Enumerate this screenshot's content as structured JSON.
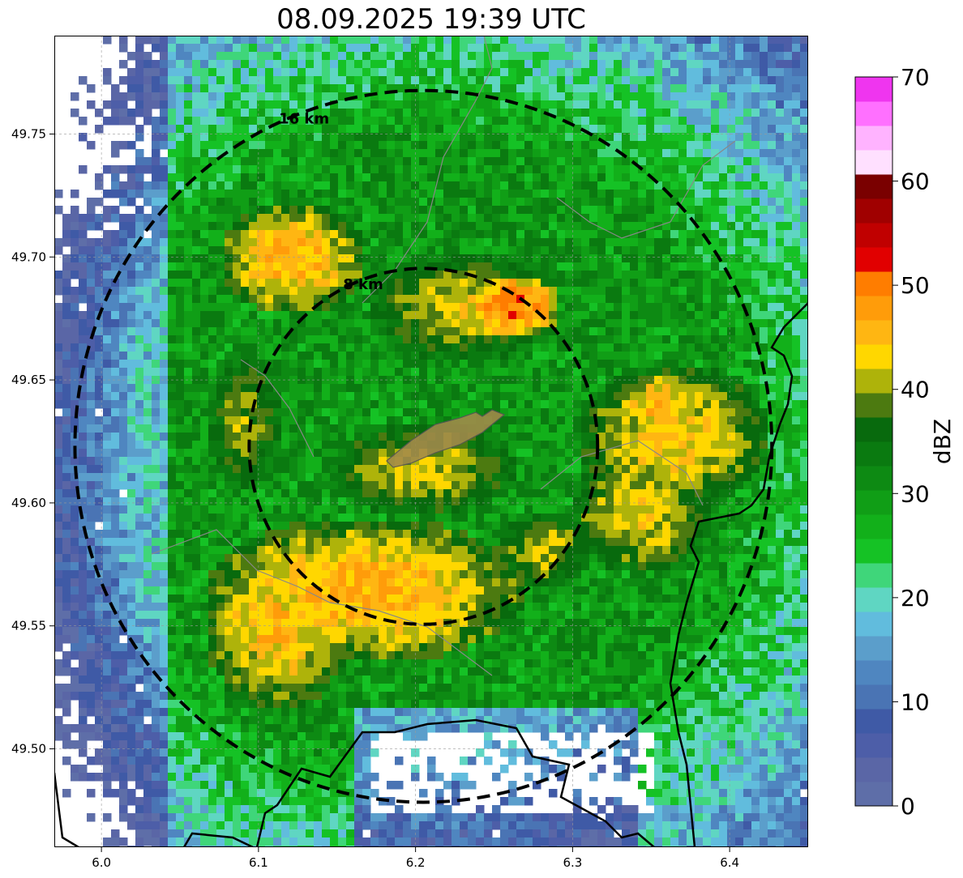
{
  "title": "08.09.2025 19:39 UTC",
  "map": {
    "x_ticks": [
      "6.0",
      "6.1",
      "6.2",
      "6.3",
      "6.4"
    ],
    "y_ticks": [
      "49.75",
      "49.70",
      "49.65",
      "49.60",
      "49.55",
      "49.50"
    ],
    "lon_range": [
      5.97,
      6.45
    ],
    "lat_range": [
      49.46,
      49.79
    ],
    "rings": [
      {
        "label": "8 km",
        "radius_km": 8
      },
      {
        "label": "16 km",
        "radius_km": 16
      }
    ],
    "radar_center": {
      "lon": 6.205,
      "lat": 49.623
    }
  },
  "colorbar": {
    "label": "dBZ",
    "min": 0,
    "max": 70,
    "tick_labels": [
      "0",
      "10",
      "20",
      "30",
      "40",
      "50",
      "60",
      "70"
    ],
    "colors": [
      "#5e6ea8",
      "#5a66a6",
      "#4d5ea8",
      "#3f5aa6",
      "#4a74b4",
      "#4f86c0",
      "#5b9ecb",
      "#61bcdd",
      "#5fd6c2",
      "#3fd67a",
      "#15c225",
      "#12b01a",
      "#109e16",
      "#0d8a13",
      "#0a7a10",
      "#086a0d",
      "#4c7a10",
      "#aeb30a",
      "#ffd700",
      "#ffb612",
      "#ff9c0a",
      "#ff7d00",
      "#e10000",
      "#c00000",
      "#a00000",
      "#7a0000",
      "#ffe0ff",
      "#ffb3ff",
      "#ff70ff",
      "#ef35ef"
    ]
  }
}
